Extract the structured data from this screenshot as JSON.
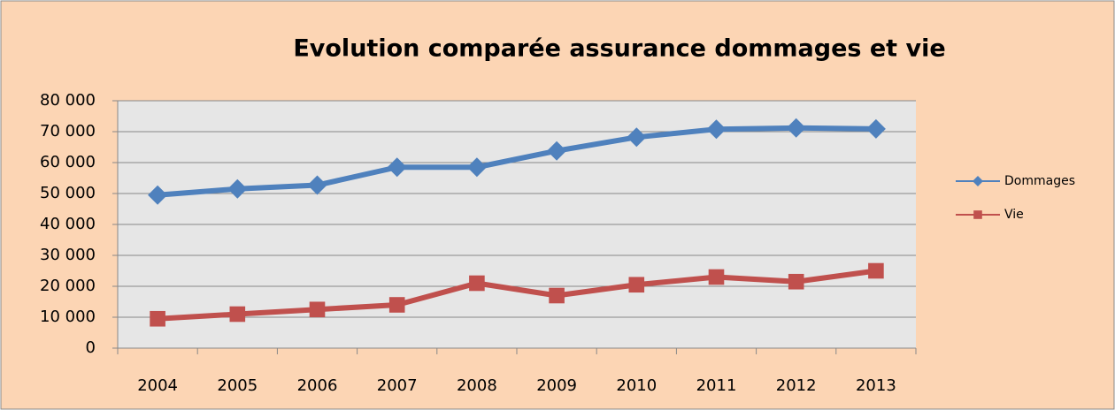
{
  "chart_data": {
    "type": "line",
    "title": "Evolution comparée assurance dommages et vie",
    "categories": [
      "2004",
      "2005",
      "2006",
      "2007",
      "2008",
      "2009",
      "2010",
      "2011",
      "2012",
      "2013"
    ],
    "series": [
      {
        "name": "Dommages",
        "color": "#4f81bd",
        "marker": "diamond",
        "values": [
          49500,
          51500,
          52700,
          58500,
          58500,
          63800,
          68200,
          70800,
          71200,
          70900
        ]
      },
      {
        "name": "Vie",
        "color": "#c0504d",
        "marker": "square",
        "values": [
          9500,
          11000,
          12500,
          14000,
          21000,
          17000,
          20500,
          23000,
          21500,
          25000
        ]
      }
    ],
    "ylim": [
      0,
      80000
    ],
    "yticks": [
      0,
      {
        "value": 10000,
        "label": "10 000"
      },
      {
        "value": 20000,
        "label": "20 000"
      },
      {
        "value": 30000,
        "label": "30 000"
      },
      {
        "value": 40000,
        "label": "40 000"
      },
      {
        "value": 50000,
        "label": "50 000"
      },
      {
        "value": 60000,
        "label": "60 000"
      },
      {
        "value": 70000,
        "label": "70 000"
      },
      {
        "value": 80000,
        "label": "80 000"
      }
    ],
    "grid": true,
    "legend": "right"
  }
}
